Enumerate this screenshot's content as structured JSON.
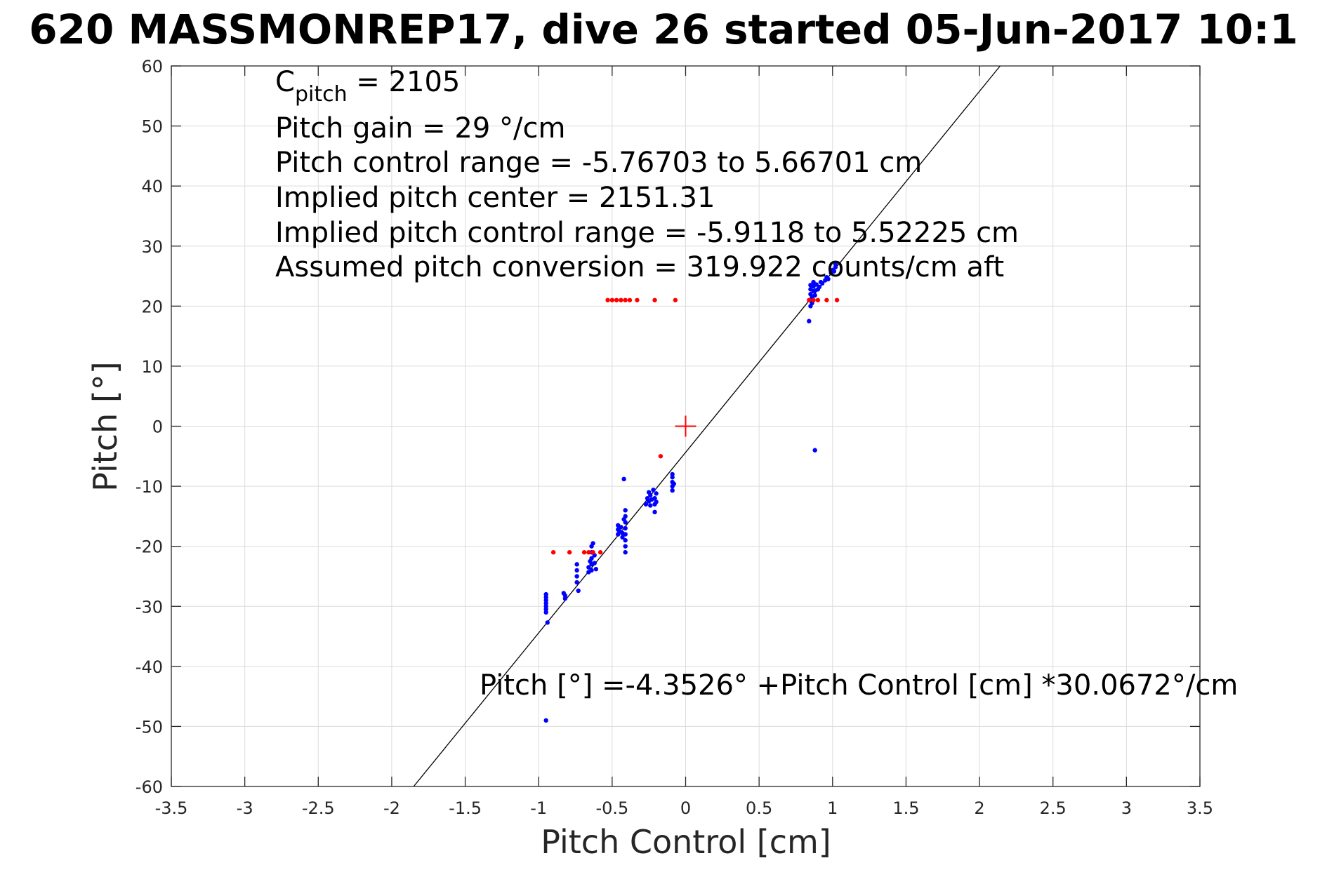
{
  "chart_data": {
    "type": "scatter",
    "title": "620 MASSMONREP17, dive 26 started 05-Jun-2017 10:1",
    "xlabel": "Pitch Control [cm]",
    "ylabel": "Pitch [°]",
    "xlim": [
      -3.5,
      3.5
    ],
    "ylim": [
      -60,
      60
    ],
    "xticks": [
      -3.5,
      -3,
      -2.5,
      -2,
      -1.5,
      -1,
      -0.5,
      0,
      0.5,
      1,
      1.5,
      2,
      2.5,
      3,
      3.5
    ],
    "xtick_labels": [
      "-3.5",
      "-3",
      "-2.5",
      "-2",
      "-1.5",
      "-1",
      "-0.5",
      "0",
      "0.5",
      "1",
      "1.5",
      "2",
      "2.5",
      "3",
      "3.5"
    ],
    "yticks": [
      -60,
      -50,
      -40,
      -30,
      -20,
      -10,
      0,
      10,
      20,
      30,
      40,
      50,
      60
    ],
    "ytick_labels": [
      "-60",
      "-50",
      "-40",
      "-30",
      "-20",
      "-10",
      "0",
      "10",
      "20",
      "30",
      "40",
      "50",
      "60"
    ],
    "grid": true,
    "colors": {
      "blue": "#0000ff",
      "red": "#ff0000",
      "line": "#000000",
      "grid": "#dcdcdc"
    },
    "annotations": {
      "c_pitch_prefix": "C",
      "c_pitch_sub": "pitch",
      "c_pitch_value": " = 2105",
      "lines": [
        "Pitch gain = 29 °/cm",
        "Pitch control range = -5.76703 to 5.66701 cm",
        "Implied pitch center = 2151.31",
        "Implied pitch control range = -5.9118 to 5.52225 cm",
        "Assumed pitch conversion = 319.922 counts/cm aft"
      ],
      "fit_equation": "Pitch [°] =-4.3526° +Pitch Control [cm] *30.0672°/cm"
    },
    "fit": {
      "intercept": -4.3526,
      "slope": 30.0672
    },
    "center_marker": {
      "x": 0,
      "y": 0
    },
    "series": [
      {
        "color": "blue",
        "points": [
          [
            -0.95,
            -28
          ],
          [
            -0.95,
            -28.5
          ],
          [
            -0.95,
            -29
          ],
          [
            -0.95,
            -29.5
          ],
          [
            -0.95,
            -30
          ],
          [
            -0.95,
            -30.5
          ],
          [
            -0.95,
            -31
          ],
          [
            -0.94,
            -32.7
          ],
          [
            -0.95,
            -49
          ],
          [
            -0.83,
            -27.8
          ],
          [
            -0.82,
            -28.2
          ],
          [
            -0.82,
            -28.7
          ],
          [
            -0.74,
            -23
          ],
          [
            -0.74,
            -24
          ],
          [
            -0.74,
            -25
          ],
          [
            -0.74,
            -26
          ],
          [
            -0.73,
            -27.4
          ],
          [
            -0.66,
            -23.5
          ],
          [
            -0.66,
            -24.3
          ],
          [
            -0.65,
            -22.5
          ],
          [
            -0.64,
            -20
          ],
          [
            -0.64,
            -21
          ],
          [
            -0.64,
            -22
          ],
          [
            -0.64,
            -23
          ],
          [
            -0.64,
            -24
          ],
          [
            -0.63,
            -19.5
          ],
          [
            -0.62,
            -21.5
          ],
          [
            -0.62,
            -22.8
          ],
          [
            -0.61,
            -23.8
          ],
          [
            -0.46,
            -16.5
          ],
          [
            -0.46,
            -17.2
          ],
          [
            -0.46,
            -18
          ],
          [
            -0.45,
            -17.5
          ],
          [
            -0.44,
            -16.8
          ],
          [
            -0.43,
            -17.8
          ],
          [
            -0.43,
            -18.5
          ],
          [
            -0.42,
            -15.5
          ],
          [
            -0.42,
            -8.8
          ],
          [
            -0.41,
            -14
          ],
          [
            -0.41,
            -15
          ],
          [
            -0.41,
            -16
          ],
          [
            -0.41,
            -17
          ],
          [
            -0.41,
            -18
          ],
          [
            -0.41,
            -19
          ],
          [
            -0.41,
            -20
          ],
          [
            -0.41,
            -21
          ],
          [
            -0.27,
            -13
          ],
          [
            -0.26,
            -12
          ],
          [
            -0.25,
            -11
          ],
          [
            -0.25,
            -12.5
          ],
          [
            -0.24,
            -11.5
          ],
          [
            -0.24,
            -13.2
          ],
          [
            -0.23,
            -12.2
          ],
          [
            -0.22,
            -10.6
          ],
          [
            -0.21,
            -12
          ],
          [
            -0.21,
            -13
          ],
          [
            -0.21,
            -14.3
          ],
          [
            -0.2,
            -11.2
          ],
          [
            -0.2,
            -12.6
          ],
          [
            -0.09,
            -8
          ],
          [
            -0.09,
            -8.5
          ],
          [
            -0.09,
            -9.3
          ],
          [
            -0.09,
            -10
          ],
          [
            -0.09,
            -10.7
          ],
          [
            -0.08,
            -9.6
          ],
          [
            0.84,
            17.5
          ],
          [
            0.85,
            20
          ],
          [
            0.85,
            21
          ],
          [
            0.85,
            22
          ],
          [
            0.85,
            22.8
          ],
          [
            0.85,
            23.5
          ],
          [
            0.86,
            21.5
          ],
          [
            0.86,
            20.5
          ],
          [
            0.87,
            22.5
          ],
          [
            0.87,
            23.3
          ],
          [
            0.87,
            24
          ],
          [
            0.88,
            21.8
          ],
          [
            0.88,
            22.6
          ],
          [
            0.88,
            -4
          ],
          [
            0.89,
            23.6
          ],
          [
            0.9,
            22.8
          ],
          [
            0.91,
            23.2
          ],
          [
            0.92,
            24
          ],
          [
            0.93,
            23.8
          ],
          [
            0.95,
            24.3
          ],
          [
            0.96,
            24.8
          ],
          [
            0.97,
            24.5
          ],
          [
            0.99,
            25.5
          ],
          [
            1.0,
            26
          ],
          [
            1.01,
            25.8
          ],
          [
            1.02,
            26.5
          ],
          [
            1.02,
            27
          ]
        ]
      },
      {
        "color": "red",
        "points": [
          [
            -0.53,
            21
          ],
          [
            -0.5,
            21
          ],
          [
            -0.47,
            21
          ],
          [
            -0.44,
            21
          ],
          [
            -0.41,
            21
          ],
          [
            -0.38,
            21
          ],
          [
            -0.33,
            21
          ],
          [
            -0.21,
            21
          ],
          [
            -0.07,
            21
          ],
          [
            0.84,
            21
          ],
          [
            0.87,
            21
          ],
          [
            0.9,
            21
          ],
          [
            0.96,
            21
          ],
          [
            1.03,
            21
          ],
          [
            -0.9,
            -21
          ],
          [
            -0.79,
            -21
          ],
          [
            -0.69,
            -21
          ],
          [
            -0.66,
            -21
          ],
          [
            -0.63,
            -21
          ],
          [
            -0.58,
            -21
          ],
          [
            -0.17,
            -5
          ]
        ]
      }
    ]
  }
}
